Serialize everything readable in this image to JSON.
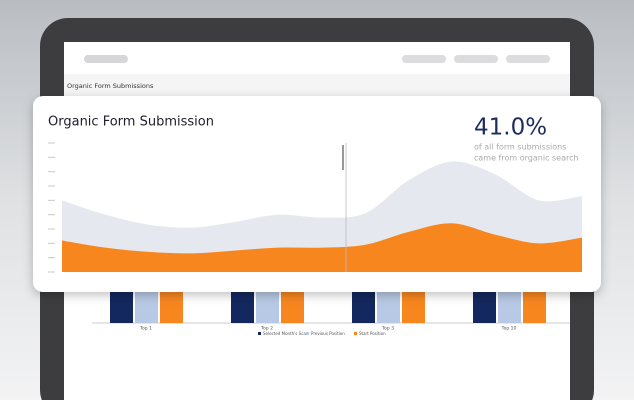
{
  "page": {
    "section_title": "Organic Form Submissions",
    "bar_categories": [
      "Top 1",
      "Top 2",
      "Top 3",
      "Top 10"
    ],
    "bar_legend": [
      "Selected Month's Scan",
      "Previous Position",
      "Start Position"
    ],
    "stat": "41.0%",
    "stat_caption": [
      "of all form submissions",
      "came from organic search"
    ]
  },
  "chart_data": {
    "type": "area",
    "title": "Organic Form Submission",
    "categories": [
      null,
      null,
      null,
      null,
      null,
      null,
      null,
      null,
      null,
      null,
      null,
      null,
      null
    ],
    "series": [
      {
        "name": "All form submissions",
        "color": "#e6e8ef",
        "values": [
          5.0,
          4.0,
          3.3,
          3.1,
          3.5,
          4.0,
          3.8,
          4.1,
          6.4,
          7.7,
          6.8,
          5.0,
          5.3
        ]
      },
      {
        "name": "Organic form submissions",
        "color": "#f7861f",
        "values": [
          2.2,
          1.7,
          1.4,
          1.3,
          1.5,
          1.7,
          1.7,
          1.9,
          2.8,
          3.4,
          2.6,
          2.0,
          2.4
        ]
      }
    ],
    "ylim": [
      0,
      9
    ],
    "yticks": [
      0,
      1,
      2,
      3,
      4,
      5,
      6,
      7,
      8,
      9
    ],
    "legend": false
  }
}
